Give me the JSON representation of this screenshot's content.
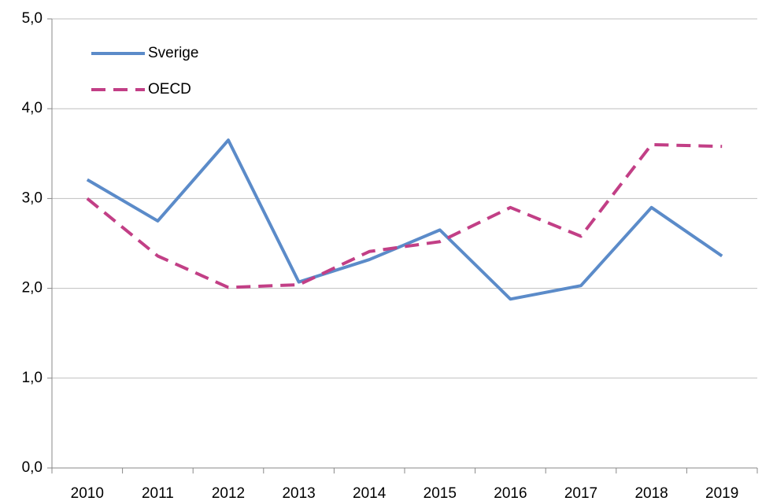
{
  "chart_data": {
    "type": "line",
    "categories": [
      "2010",
      "2011",
      "2012",
      "2013",
      "2014",
      "2015",
      "2016",
      "2017",
      "2018",
      "2019"
    ],
    "series": [
      {
        "name": "Sverige",
        "color": "#5b8bc9",
        "style": "solid",
        "values": [
          3.21,
          2.75,
          3.65,
          2.07,
          2.32,
          2.65,
          1.88,
          2.03,
          2.9,
          2.36
        ]
      },
      {
        "name": "OECD",
        "color": "#c23f86",
        "style": "dashed",
        "values": [
          3.0,
          2.36,
          2.01,
          2.04,
          2.41,
          2.52,
          2.9,
          2.58,
          3.6,
          3.58
        ]
      }
    ],
    "ylim": [
      0,
      5
    ],
    "yticks": [
      {
        "value": 0,
        "label": "0,0"
      },
      {
        "value": 1,
        "label": "1,0"
      },
      {
        "value": 2,
        "label": "2,0"
      },
      {
        "value": 3,
        "label": "3,0"
      },
      {
        "value": 4,
        "label": "4,0"
      },
      {
        "value": 5,
        "label": "5,0"
      }
    ],
    "grid": true,
    "legend": "top-left"
  }
}
